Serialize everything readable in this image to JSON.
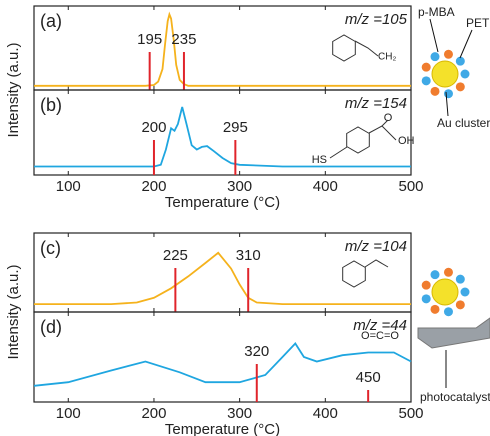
{
  "chart_data": [
    {
      "type": "line",
      "panel_label": "(a)",
      "annotation": "m/z =105",
      "ylabel": "Intensity (a.u.)",
      "x": [
        60,
        100,
        150,
        190,
        200,
        205,
        210,
        213,
        216,
        218,
        220,
        223,
        226,
        230,
        235,
        240,
        260,
        300,
        350,
        400,
        450,
        500
      ],
      "values": [
        0.05,
        0.05,
        0.05,
        0.05,
        0.06,
        0.1,
        0.25,
        0.55,
        0.82,
        0.9,
        0.85,
        0.6,
        0.3,
        0.12,
        0.07,
        0.05,
        0.05,
        0.05,
        0.05,
        0.05,
        0.05,
        0.05
      ],
      "color": "#f5b21c",
      "markers": [
        195,
        235
      ],
      "marker_color": "#e0242b",
      "structure_labels": [
        "CH₂"
      ],
      "xlim": [
        60,
        500
      ],
      "xticks": [
        100,
        200,
        300,
        400,
        500
      ],
      "ylim": [
        0,
        1
      ]
    },
    {
      "type": "line",
      "panel_label": "(b)",
      "annotation": "m/z =154",
      "xlabel": "Temperature (°C)",
      "x": [
        60,
        100,
        150,
        200,
        208,
        214,
        220,
        224,
        228,
        233,
        238,
        244,
        250,
        256,
        262,
        270,
        280,
        290,
        300,
        350,
        400,
        450,
        500
      ],
      "values": [
        0.1,
        0.1,
        0.1,
        0.1,
        0.12,
        0.3,
        0.55,
        0.52,
        0.6,
        0.8,
        0.6,
        0.35,
        0.3,
        0.33,
        0.34,
        0.28,
        0.2,
        0.14,
        0.12,
        0.1,
        0.1,
        0.1,
        0.1
      ],
      "color": "#1fa6e0",
      "markers": [
        200,
        295
      ],
      "marker_color": "#e0242b",
      "structure_labels": [
        "O",
        "OH",
        "HS"
      ],
      "xlim": [
        60,
        500
      ],
      "xticks": [
        100,
        200,
        300,
        400,
        500
      ],
      "ylim": [
        0,
        1
      ]
    },
    {
      "type": "line",
      "panel_label": "(c)",
      "annotation": "m/z =104",
      "ylabel": "Intensity (a.u.)",
      "x": [
        60,
        100,
        150,
        180,
        200,
        220,
        240,
        260,
        275,
        290,
        300,
        310,
        320,
        350,
        400,
        450,
        500
      ],
      "values": [
        0.1,
        0.1,
        0.1,
        0.12,
        0.18,
        0.3,
        0.45,
        0.62,
        0.75,
        0.55,
        0.35,
        0.18,
        0.12,
        0.1,
        0.1,
        0.1,
        0.1
      ],
      "color": "#f5b21c",
      "markers": [
        225,
        310
      ],
      "marker_color": "#e0242b",
      "xlim": [
        60,
        500
      ],
      "xticks": [
        100,
        200,
        300,
        400,
        500
      ],
      "ylim": [
        0,
        1
      ]
    },
    {
      "type": "line",
      "panel_label": "(d)",
      "annotation": "m/z =44",
      "xlabel": "Temperature (°C)",
      "x": [
        60,
        100,
        150,
        190,
        230,
        260,
        300,
        330,
        350,
        365,
        375,
        390,
        420,
        450,
        480,
        500
      ],
      "values": [
        0.18,
        0.22,
        0.35,
        0.45,
        0.33,
        0.22,
        0.22,
        0.3,
        0.5,
        0.65,
        0.5,
        0.45,
        0.52,
        0.55,
        0.55,
        0.45
      ],
      "color": "#1fa6e0",
      "markers": [
        320,
        450
      ],
      "marker_color": "#e0242b",
      "structure_labels": [
        "O=C=O"
      ],
      "xlim": [
        60,
        500
      ],
      "xticks": [
        100,
        200,
        300,
        400,
        500
      ],
      "ylim": [
        0,
        1
      ]
    }
  ],
  "schematics": [
    {
      "labels": [
        "p-MBA",
        "PET",
        "Au cluster"
      ]
    },
    {
      "labels": [
        "photocatalyst"
      ]
    }
  ]
}
